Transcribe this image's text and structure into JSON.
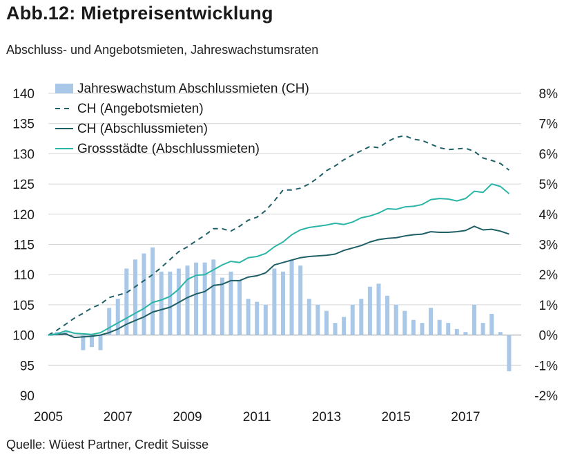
{
  "title": "Abb.12: Mietpreisentwicklung",
  "subtitle": "Abschluss- und Angebotsmieten, Jahreswachstumsraten",
  "source": "Quelle: Wüest Partner, Credit Suisse",
  "colors": {
    "bars": "#a9c8e8",
    "angebotsmieten": "#1f5f66",
    "abschlussmieten": "#1f5f66",
    "grossstaedte": "#2bb5a6",
    "grid": "#d6d6d6"
  },
  "chart_data": {
    "type": "bar+line",
    "xlim": [
      2005,
      2018.6
    ],
    "x_ticks": [
      "2005",
      "2007",
      "2009",
      "2011",
      "2013",
      "2015",
      "2017"
    ],
    "x_tick_values": [
      2005,
      2007,
      2009,
      2011,
      2013,
      2015,
      2017
    ],
    "y_left": {
      "ylim": [
        90,
        140
      ],
      "ticks": [
        "90",
        "95",
        "100",
        "105",
        "110",
        "115",
        "120",
        "125",
        "130",
        "135",
        "140"
      ]
    },
    "y_right": {
      "ylim": [
        -2,
        8
      ],
      "ticks": [
        "-2%",
        "-1%",
        "0%",
        "1%",
        "2%",
        "3%",
        "4%",
        "5%",
        "6%",
        "7%",
        "8%"
      ]
    },
    "grid": true,
    "legend": "top-left",
    "bars": {
      "name": "Jahreswachstum Abschlussmieten (CH)",
      "axis": "right",
      "x": [
        2005.0,
        2005.25,
        2005.5,
        2005.75,
        2006.0,
        2006.25,
        2006.5,
        2006.75,
        2007.0,
        2007.25,
        2007.5,
        2007.75,
        2008.0,
        2008.25,
        2008.5,
        2008.75,
        2009.0,
        2009.25,
        2009.5,
        2009.75,
        2010.0,
        2010.25,
        2010.5,
        2010.75,
        2011.0,
        2011.25,
        2011.5,
        2011.75,
        2012.0,
        2012.25,
        2012.5,
        2012.75,
        2013.0,
        2013.25,
        2013.5,
        2013.75,
        2014.0,
        2014.25,
        2014.5,
        2014.75,
        2015.0,
        2015.25,
        2015.5,
        2015.75,
        2016.0,
        2016.25,
        2016.5,
        2016.75,
        2017.0,
        2017.25,
        2017.5,
        2017.75,
        2018.0,
        2018.25
      ],
      "values": [
        0.0,
        0.1,
        0.1,
        0.0,
        -0.5,
        -0.4,
        -0.5,
        0.9,
        1.2,
        2.2,
        2.5,
        2.7,
        2.9,
        2.1,
        2.1,
        2.2,
        2.3,
        2.4,
        2.4,
        2.5,
        1.9,
        2.1,
        1.8,
        1.2,
        1.1,
        1.0,
        2.2,
        2.1,
        2.5,
        2.3,
        1.2,
        1.0,
        0.8,
        0.4,
        0.6,
        1.0,
        1.2,
        1.6,
        1.7,
        1.3,
        1.0,
        0.8,
        0.5,
        0.4,
        0.9,
        0.5,
        0.4,
        0.2,
        0.1,
        1.0,
        0.4,
        0.7,
        0.1,
        -1.2
      ]
    },
    "series": [
      {
        "name": "CH (Angebotsmieten)",
        "axis": "left",
        "style": "dashed",
        "x": [
          2005.0,
          2005.25,
          2005.5,
          2005.75,
          2006.0,
          2006.25,
          2006.5,
          2006.75,
          2007.0,
          2007.25,
          2007.5,
          2007.75,
          2008.0,
          2008.25,
          2008.5,
          2008.75,
          2009.0,
          2009.25,
          2009.5,
          2009.75,
          2010.0,
          2010.25,
          2010.5,
          2010.75,
          2011.0,
          2011.25,
          2011.5,
          2011.75,
          2012.0,
          2012.25,
          2012.5,
          2012.75,
          2013.0,
          2013.25,
          2013.5,
          2013.75,
          2014.0,
          2014.25,
          2014.5,
          2014.75,
          2015.0,
          2015.25,
          2015.5,
          2015.75,
          2016.0,
          2016.25,
          2016.5,
          2016.75,
          2017.0,
          2017.25,
          2017.5,
          2017.75,
          2018.0,
          2018.25
        ],
        "values": [
          100.0,
          100.8,
          101.8,
          102.8,
          103.6,
          104.5,
          105.1,
          106.2,
          106.6,
          107.0,
          108.0,
          109.0,
          110.0,
          111.2,
          112.5,
          113.8,
          114.6,
          115.6,
          116.5,
          117.6,
          117.6,
          117.2,
          118.0,
          119.0,
          119.5,
          120.6,
          122.2,
          124.0,
          124.0,
          124.3,
          125.0,
          126.0,
          127.2,
          128.0,
          129.0,
          129.8,
          130.5,
          131.2,
          131.0,
          132.0,
          132.7,
          133.0,
          132.4,
          132.2,
          131.6,
          131.0,
          130.7,
          130.8,
          130.9,
          130.4,
          129.3,
          128.9,
          128.4,
          127.3
        ]
      },
      {
        "name": "CH (Abschlussmieten)",
        "axis": "left",
        "style": "solid",
        "x": [
          2005.0,
          2005.25,
          2005.5,
          2005.75,
          2006.0,
          2006.25,
          2006.5,
          2006.75,
          2007.0,
          2007.25,
          2007.5,
          2007.75,
          2008.0,
          2008.25,
          2008.5,
          2008.75,
          2009.0,
          2009.25,
          2009.5,
          2009.75,
          2010.0,
          2010.25,
          2010.5,
          2010.75,
          2011.0,
          2011.25,
          2011.5,
          2011.75,
          2012.0,
          2012.25,
          2012.5,
          2012.75,
          2013.0,
          2013.25,
          2013.5,
          2013.75,
          2014.0,
          2014.25,
          2014.5,
          2014.75,
          2015.0,
          2015.25,
          2015.5,
          2015.75,
          2016.0,
          2016.25,
          2016.5,
          2016.75,
          2017.0,
          2017.25,
          2017.5,
          2017.75,
          2018.0,
          2018.25
        ],
        "values": [
          100.0,
          100.1,
          100.2,
          99.6,
          99.7,
          99.8,
          100.0,
          100.4,
          101.0,
          101.8,
          102.4,
          103.0,
          103.8,
          104.2,
          104.6,
          105.4,
          106.2,
          106.8,
          107.2,
          108.2,
          108.4,
          109.0,
          109.0,
          109.6,
          109.8,
          110.3,
          111.6,
          112.0,
          112.4,
          112.8,
          113.0,
          113.1,
          113.2,
          113.4,
          114.0,
          114.4,
          114.8,
          115.4,
          115.8,
          116.0,
          116.1,
          116.4,
          116.6,
          116.7,
          117.1,
          117.0,
          117.0,
          117.1,
          117.3,
          118.0,
          117.4,
          117.5,
          117.2,
          116.7
        ]
      },
      {
        "name": "Grossstädte (Abschlussmieten)",
        "axis": "left",
        "style": "solid",
        "x": [
          2005.0,
          2005.25,
          2005.5,
          2005.75,
          2006.0,
          2006.25,
          2006.5,
          2006.75,
          2007.0,
          2007.25,
          2007.5,
          2007.75,
          2008.0,
          2008.25,
          2008.5,
          2008.75,
          2009.0,
          2009.25,
          2009.5,
          2009.75,
          2010.0,
          2010.25,
          2010.5,
          2010.75,
          2011.0,
          2011.25,
          2011.5,
          2011.75,
          2012.0,
          2012.25,
          2012.5,
          2012.75,
          2013.0,
          2013.25,
          2013.5,
          2013.75,
          2014.0,
          2014.25,
          2014.5,
          2014.75,
          2015.0,
          2015.25,
          2015.5,
          2015.75,
          2016.0,
          2016.25,
          2016.5,
          2016.75,
          2017.0,
          2017.25,
          2017.5,
          2017.75,
          2018.0,
          2018.25
        ],
        "values": [
          100.0,
          100.2,
          100.7,
          100.3,
          100.2,
          100.1,
          100.4,
          101.2,
          102.0,
          102.8,
          103.6,
          104.4,
          105.4,
          105.8,
          106.4,
          107.6,
          109.2,
          109.9,
          110.0,
          110.8,
          111.6,
          112.2,
          112.0,
          112.8,
          113.0,
          113.5,
          114.6,
          115.4,
          116.6,
          117.4,
          117.8,
          118.0,
          118.2,
          118.5,
          118.3,
          118.7,
          119.4,
          119.7,
          120.2,
          120.9,
          120.8,
          121.2,
          121.3,
          121.6,
          122.4,
          122.6,
          122.5,
          122.2,
          122.6,
          123.8,
          123.6,
          125.0,
          124.6,
          123.4
        ]
      }
    ]
  }
}
